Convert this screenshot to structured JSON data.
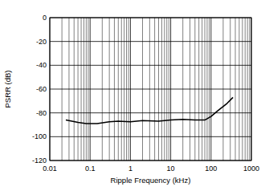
{
  "chart_data": {
    "type": "line",
    "x_label": "Ripple Frequency (kHz)",
    "y_label": "PSRR (dB)",
    "x": [
      0.025,
      0.05,
      0.08,
      0.15,
      0.3,
      0.5,
      1,
      2,
      5,
      10,
      20,
      40,
      70,
      100,
      150,
      250,
      350
    ],
    "values": [
      -86,
      -88,
      -89,
      -89,
      -87.5,
      -87,
      -87.5,
      -86.5,
      -87,
      -86,
      -85.5,
      -86,
      -86,
      -83,
      -78,
      -72,
      -67
    ],
    "color": "#000000",
    "xlim": [
      0.01,
      1000
    ],
    "xticks": [
      0.01,
      0.1,
      1,
      10,
      100,
      1000
    ],
    "ylim": [
      -120,
      0
    ],
    "yticks": [
      -120,
      -100,
      -80,
      -60,
      -40,
      -20,
      0
    ],
    "log": "x",
    "grid": true
  }
}
